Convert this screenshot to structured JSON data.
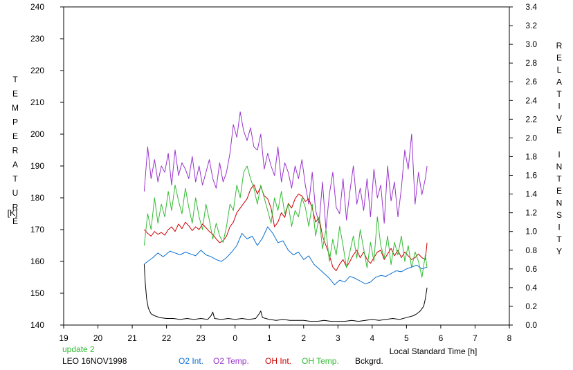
{
  "chart_data": {
    "type": "line",
    "ylabel_left": "TEMPERATURE",
    "ylabel_left_unit": "[K]",
    "ylabel_right": "RELATIVE INTENSITY",
    "xlabel": "Local Standard Time [h]",
    "update_text": "update 2",
    "site_date": "LEO 16NOV1998",
    "x_tick_labels": [
      "19",
      "20",
      "21",
      "22",
      "23",
      "0",
      "1",
      "2",
      "3",
      "4",
      "5",
      "6",
      "7",
      "8"
    ],
    "x_ticks": [
      19,
      20,
      21,
      22,
      23,
      24,
      25,
      26,
      27,
      28,
      29,
      30,
      31,
      32
    ],
    "x_range": [
      19,
      32
    ],
    "ylim_left": [
      140,
      240
    ],
    "left_ticks": [
      "140",
      "150",
      "160",
      "170",
      "180",
      "190",
      "200",
      "210",
      "220",
      "230",
      "240"
    ],
    "ylim_right": [
      0.0,
      3.4
    ],
    "right_ticks": [
      "0.0",
      "0.2",
      "0.4",
      "0.6",
      "0.8",
      "1.0",
      "1.2",
      "1.4",
      "1.6",
      "1.8",
      "2.0",
      "2.2",
      "2.4",
      "2.6",
      "2.8",
      "3.0",
      "3.2",
      "3.4"
    ],
    "grid": false,
    "series": [
      {
        "name": "O2 Int.",
        "axis": "right",
        "color": "#0a6fd0",
        "x": [
          21.35,
          21.45,
          21.6,
          21.75,
          21.9,
          22.0,
          22.1,
          22.25,
          22.4,
          22.55,
          22.7,
          22.85,
          23.0,
          23.15,
          23.3,
          23.45,
          23.6,
          23.75,
          23.9,
          24.05,
          24.2,
          24.35,
          24.5,
          24.65,
          24.8,
          24.95,
          25.1,
          25.25,
          25.4,
          25.55,
          25.7,
          25.85,
          26.0,
          26.15,
          26.3,
          26.45,
          26.6,
          26.75,
          26.9,
          27.05,
          27.2,
          27.35,
          27.5,
          27.65,
          27.8,
          27.95,
          28.1,
          28.25,
          28.4,
          28.55,
          28.7,
          28.85,
          29.0,
          29.15,
          29.3,
          29.45,
          29.6
        ],
        "y": [
          0.65,
          0.68,
          0.72,
          0.77,
          0.73,
          0.76,
          0.79,
          0.77,
          0.75,
          0.78,
          0.76,
          0.74,
          0.8,
          0.75,
          0.73,
          0.7,
          0.68,
          0.72,
          0.78,
          0.85,
          0.98,
          0.92,
          0.95,
          0.85,
          0.93,
          1.05,
          0.98,
          0.88,
          0.9,
          0.8,
          0.75,
          0.78,
          0.7,
          0.74,
          0.65,
          0.6,
          0.55,
          0.5,
          0.43,
          0.48,
          0.46,
          0.52,
          0.5,
          0.47,
          0.44,
          0.46,
          0.51,
          0.53,
          0.52,
          0.55,
          0.58,
          0.57,
          0.6,
          0.62,
          0.64,
          0.6,
          0.62
        ]
      },
      {
        "name": "O2 Temp.",
        "axis": "left",
        "color": "#9933cc",
        "x": [
          21.35,
          21.45,
          21.55,
          21.65,
          21.75,
          21.85,
          21.95,
          22.05,
          22.15,
          22.25,
          22.35,
          22.45,
          22.55,
          22.65,
          22.75,
          22.85,
          22.95,
          23.05,
          23.15,
          23.25,
          23.35,
          23.45,
          23.55,
          23.65,
          23.75,
          23.85,
          23.95,
          24.05,
          24.15,
          24.25,
          24.35,
          24.45,
          24.55,
          24.65,
          24.75,
          24.85,
          24.95,
          25.05,
          25.15,
          25.25,
          25.35,
          25.45,
          25.55,
          25.65,
          25.75,
          25.85,
          25.95,
          26.05,
          26.15,
          26.25,
          26.35,
          26.45,
          26.55,
          26.65,
          26.75,
          26.85,
          26.95,
          27.05,
          27.15,
          27.25,
          27.35,
          27.45,
          27.55,
          27.65,
          27.75,
          27.85,
          27.95,
          28.05,
          28.15,
          28.25,
          28.35,
          28.45,
          28.55,
          28.65,
          28.75,
          28.85,
          28.95,
          29.05,
          29.15,
          29.25,
          29.35,
          29.45,
          29.55,
          29.6
        ],
        "y": [
          182,
          196,
          186,
          192,
          185,
          190,
          188,
          194,
          184,
          195,
          187,
          191,
          189,
          186,
          193,
          185,
          190,
          184,
          188,
          192,
          186,
          183,
          191,
          185,
          188,
          194,
          203,
          199,
          207,
          201,
          198,
          202,
          196,
          195,
          200,
          189,
          194,
          190,
          187,
          196,
          185,
          191,
          188,
          183,
          190,
          186,
          192,
          184,
          178,
          188,
          176,
          172,
          185,
          170,
          181,
          188,
          177,
          175,
          186,
          173,
          182,
          190,
          178,
          183,
          176,
          186,
          174,
          189,
          180,
          184,
          172,
          190,
          179,
          185,
          174,
          183,
          195,
          189,
          200,
          178,
          188,
          181,
          186,
          190
        ]
      },
      {
        "name": "OH Int.",
        "axis": "right",
        "color": "#cc0000",
        "x": [
          21.35,
          21.45,
          21.55,
          21.65,
          21.75,
          21.85,
          21.95,
          22.05,
          22.15,
          22.25,
          22.35,
          22.45,
          22.55,
          22.65,
          22.75,
          22.85,
          22.95,
          23.05,
          23.15,
          23.25,
          23.35,
          23.45,
          23.55,
          23.65,
          23.75,
          23.85,
          23.95,
          24.05,
          24.15,
          24.25,
          24.35,
          24.45,
          24.55,
          24.65,
          24.75,
          24.85,
          24.95,
          25.05,
          25.15,
          25.25,
          25.35,
          25.45,
          25.55,
          25.65,
          25.75,
          25.85,
          25.95,
          26.05,
          26.15,
          26.25,
          26.35,
          26.45,
          26.55,
          26.65,
          26.75,
          26.85,
          26.95,
          27.05,
          27.15,
          27.25,
          27.35,
          27.45,
          27.55,
          27.65,
          27.75,
          27.85,
          27.95,
          28.05,
          28.15,
          28.25,
          28.35,
          28.45,
          28.55,
          28.65,
          28.75,
          28.85,
          28.95,
          29.05,
          29.15,
          29.25,
          29.35,
          29.45,
          29.55,
          29.6
        ],
        "y": [
          1.02,
          0.98,
          0.95,
          1.0,
          0.97,
          0.99,
          0.96,
          1.02,
          1.05,
          1.0,
          1.08,
          1.03,
          1.1,
          1.06,
          1.01,
          1.05,
          1.02,
          1.08,
          1.04,
          1.0,
          0.97,
          0.92,
          0.88,
          0.9,
          0.95,
          1.05,
          1.1,
          1.2,
          1.25,
          1.3,
          1.35,
          1.45,
          1.5,
          1.4,
          1.48,
          1.38,
          1.35,
          1.25,
          1.05,
          1.1,
          1.2,
          1.15,
          1.3,
          1.25,
          1.35,
          1.4,
          1.38,
          1.32,
          1.35,
          1.25,
          1.1,
          1.15,
          0.95,
          0.85,
          0.75,
          0.62,
          0.58,
          0.65,
          0.7,
          0.62,
          0.68,
          0.75,
          0.8,
          0.72,
          0.78,
          0.7,
          0.66,
          0.72,
          0.78,
          0.8,
          0.7,
          0.76,
          0.82,
          0.74,
          0.8,
          0.72,
          0.78,
          0.74,
          0.7,
          0.72,
          0.76,
          0.72,
          0.7,
          0.88
        ]
      },
      {
        "name": "OH Temp.",
        "axis": "left",
        "color": "#33bb33",
        "x": [
          21.35,
          21.45,
          21.55,
          21.65,
          21.75,
          21.85,
          21.95,
          22.05,
          22.15,
          22.25,
          22.35,
          22.45,
          22.55,
          22.65,
          22.75,
          22.85,
          22.95,
          23.05,
          23.15,
          23.25,
          23.35,
          23.45,
          23.55,
          23.65,
          23.75,
          23.85,
          23.95,
          24.05,
          24.15,
          24.25,
          24.35,
          24.45,
          24.55,
          24.65,
          24.75,
          24.85,
          24.95,
          25.05,
          25.15,
          25.25,
          25.35,
          25.45,
          25.55,
          25.65,
          25.75,
          25.85,
          25.95,
          26.05,
          26.15,
          26.25,
          26.35,
          26.45,
          26.55,
          26.65,
          26.75,
          26.85,
          26.95,
          27.05,
          27.15,
          27.25,
          27.35,
          27.45,
          27.55,
          27.65,
          27.75,
          27.85,
          27.95,
          28.05,
          28.15,
          28.25,
          28.35,
          28.45,
          28.55,
          28.65,
          28.75,
          28.85,
          28.95,
          29.05,
          29.15,
          29.25,
          29.35,
          29.45,
          29.55,
          29.6
        ],
        "y": [
          165,
          175,
          170,
          180,
          172,
          178,
          174,
          182,
          176,
          184,
          179,
          175,
          183,
          177,
          172,
          180,
          174,
          170,
          178,
          173,
          167,
          172,
          168,
          166,
          171,
          178,
          176,
          184,
          180,
          188,
          190,
          186,
          183,
          178,
          184,
          180,
          176,
          172,
          180,
          176,
          182,
          175,
          178,
          171,
          176,
          174,
          180,
          177,
          171,
          178,
          168,
          174,
          164,
          170,
          160,
          167,
          162,
          171,
          165,
          158,
          163,
          168,
          161,
          170,
          164,
          158,
          166,
          160,
          174,
          165,
          161,
          168,
          159,
          166,
          162,
          168,
          160,
          165,
          158,
          163,
          160,
          155,
          162,
          158
        ]
      },
      {
        "name": "Bckgrd.",
        "axis": "right",
        "color": "#000000",
        "x": [
          21.35,
          21.38,
          21.42,
          21.47,
          21.55,
          21.65,
          21.8,
          22.0,
          22.2,
          22.4,
          22.6,
          22.8,
          23.0,
          23.2,
          23.3,
          23.35,
          23.4,
          23.6,
          23.8,
          24.0,
          24.2,
          24.4,
          24.6,
          24.7,
          24.75,
          24.8,
          25.0,
          25.2,
          25.4,
          25.6,
          25.8,
          26.0,
          26.2,
          26.4,
          26.6,
          26.8,
          27.0,
          27.2,
          27.4,
          27.6,
          27.8,
          28.0,
          28.2,
          28.4,
          28.6,
          28.8,
          29.0,
          29.2,
          29.3,
          29.4,
          29.5,
          29.55,
          29.6
        ],
        "y": [
          0.65,
          0.45,
          0.28,
          0.18,
          0.12,
          0.1,
          0.08,
          0.07,
          0.07,
          0.06,
          0.07,
          0.06,
          0.07,
          0.06,
          0.1,
          0.14,
          0.07,
          0.06,
          0.07,
          0.06,
          0.07,
          0.06,
          0.07,
          0.12,
          0.15,
          0.08,
          0.06,
          0.05,
          0.06,
          0.05,
          0.05,
          0.05,
          0.04,
          0.04,
          0.05,
          0.04,
          0.04,
          0.04,
          0.05,
          0.04,
          0.05,
          0.06,
          0.05,
          0.06,
          0.07,
          0.06,
          0.08,
          0.1,
          0.12,
          0.15,
          0.2,
          0.28,
          0.4
        ]
      }
    ]
  }
}
